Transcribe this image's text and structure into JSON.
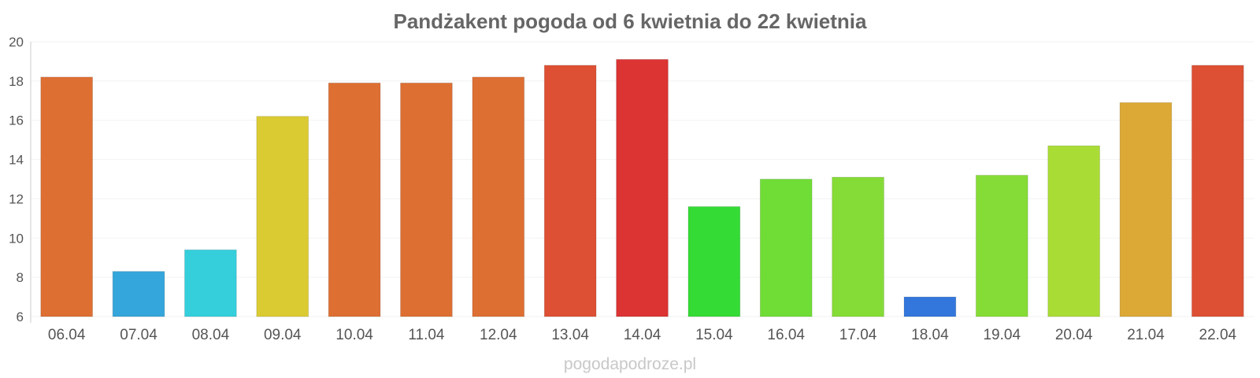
{
  "chart_data": {
    "type": "bar",
    "title": "Pandżakent pogoda od 6 kwietnia do 22 kwietnia",
    "xlabel": "",
    "ylabel": "",
    "ylim": [
      6,
      20
    ],
    "yticks": [
      6,
      8,
      10,
      12,
      14,
      16,
      18,
      20
    ],
    "grid": true,
    "categories": [
      "06.04",
      "07.04",
      "08.04",
      "09.04",
      "10.04",
      "11.04",
      "12.04",
      "13.04",
      "14.04",
      "15.04",
      "16.04",
      "17.04",
      "18.04",
      "19.04",
      "20.04",
      "21.04",
      "22.04"
    ],
    "values": [
      18.2,
      8.3,
      9.4,
      16.2,
      17.9,
      17.9,
      18.2,
      18.8,
      19.1,
      11.6,
      13.0,
      13.1,
      7.0,
      13.2,
      14.7,
      16.9,
      18.8
    ],
    "colors": [
      "#dd6f33",
      "#35a6db",
      "#35cfdc",
      "#dbcb33",
      "#dd6f33",
      "#dd6f33",
      "#dd6f33",
      "#dd5033",
      "#dc3333",
      "#35db35",
      "#6fdd36",
      "#86dc36",
      "#3377dc",
      "#86dc36",
      "#aadc36",
      "#dca936",
      "#dd5033"
    ]
  },
  "watermark": "pogodapodroze.pl"
}
